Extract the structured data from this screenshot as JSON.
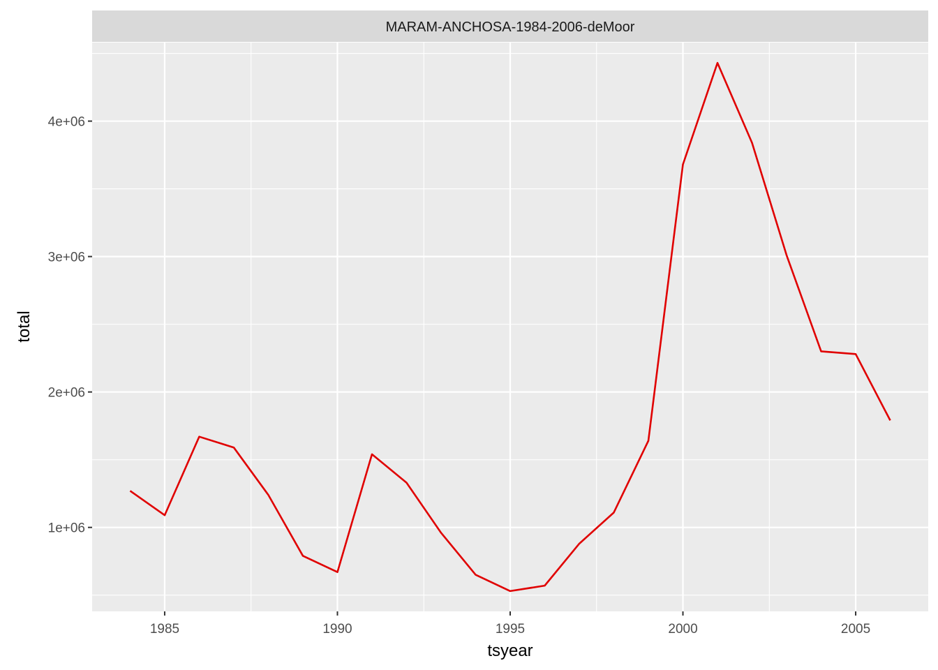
{
  "chart_data": {
    "type": "line",
    "facet_label": "MARAM-ANCHOSA-1984-2006-deMoor",
    "xlabel": "tsyear",
    "ylabel": "total",
    "xlim": [
      1982.9,
      2007.1
    ],
    "ylim": [
      380000,
      4580000
    ],
    "x_ticks": [
      1985,
      1990,
      1995,
      2000,
      2005
    ],
    "x_tick_labels": [
      "1985",
      "1990",
      "1995",
      "2000",
      "2005"
    ],
    "x_minor_ticks": [
      1987.5,
      1992.5,
      1997.5,
      2002.5
    ],
    "y_ticks": [
      1000000,
      2000000,
      3000000,
      4000000
    ],
    "y_tick_labels": [
      "1e+06",
      "2e+06",
      "3e+06",
      "4e+06"
    ],
    "y_minor_ticks": [
      500000,
      1500000,
      2500000,
      3500000,
      4500000
    ],
    "grid": true,
    "series": [
      {
        "color": "#e00000",
        "x": [
          1984,
          1985,
          1986,
          1987,
          1988,
          1989,
          1990,
          1991,
          1992,
          1993,
          1994,
          1995,
          1996,
          1997,
          1998,
          1999,
          2000,
          2001,
          2002,
          2003,
          2004,
          2005,
          2006
        ],
        "values": [
          1270000,
          1090000,
          1670000,
          1590000,
          1240000,
          790000,
          670000,
          1540000,
          1330000,
          960000,
          650000,
          530000,
          570000,
          880000,
          1110000,
          1640000,
          3680000,
          4430000,
          3840000,
          3010000,
          2300000,
          2280000,
          1790000
        ]
      }
    ]
  },
  "colors": {
    "panel_bg": "#ebebeb",
    "strip_bg": "#d9d9d9",
    "grid": "#ffffff",
    "line": "#e00000"
  }
}
